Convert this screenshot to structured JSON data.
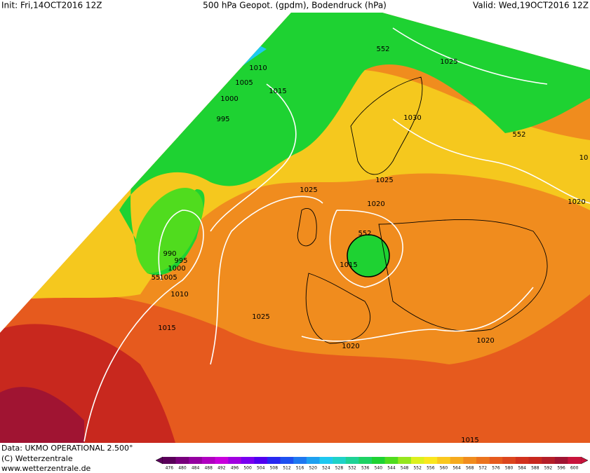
{
  "header": {
    "init": "Init: Fri,14OCT2016 12Z",
    "title": "500 hPa Geopot. (gpdm), Bodendruck (hPa)",
    "valid": "Valid: Wed,19OCT2016 12Z"
  },
  "contour_labels": [
    "1010",
    "1005",
    "1015",
    "1000",
    "995",
    "552",
    "1025",
    "1030",
    "552",
    "10",
    "1025",
    "1025",
    "1020",
    "552",
    "1020",
    "990",
    "995",
    "1000",
    "55",
    "1005",
    "1015",
    "1010",
    "1025",
    "1015",
    "1020",
    "1020",
    "1015"
  ],
  "footer": {
    "data": "Data: UKMO OPERATIONAL 2.500°",
    "copyright": "(C) Wetterzentrale",
    "url": "www.wetterzentrale.de"
  },
  "colorbar": {
    "labels": [
      476,
      480,
      484,
      488,
      492,
      496,
      500,
      504,
      508,
      512,
      516,
      520,
      524,
      528,
      532,
      536,
      540,
      544,
      548,
      552,
      556,
      560,
      564,
      568,
      572,
      576,
      580,
      584,
      588,
      592,
      596,
      600
    ],
    "colors": [
      "#5a005a",
      "#78007c",
      "#9400a0",
      "#b000c0",
      "#c800dc",
      "#a000e0",
      "#7800f0",
      "#5000f0",
      "#2828f0",
      "#1e50f0",
      "#1e78f0",
      "#1ea0f0",
      "#1ec8f0",
      "#1ed2c8",
      "#1ed296",
      "#1ed264",
      "#1ed232",
      "#50dc1e",
      "#96e61e",
      "#dcf01e",
      "#fae61e",
      "#fac81e",
      "#f5aa1e",
      "#f08c1e",
      "#eb731e",
      "#e65a1e",
      "#dc461e",
      "#d2321e",
      "#c8281e",
      "#b41e28",
      "#a01432",
      "#c8143c"
    ]
  }
}
